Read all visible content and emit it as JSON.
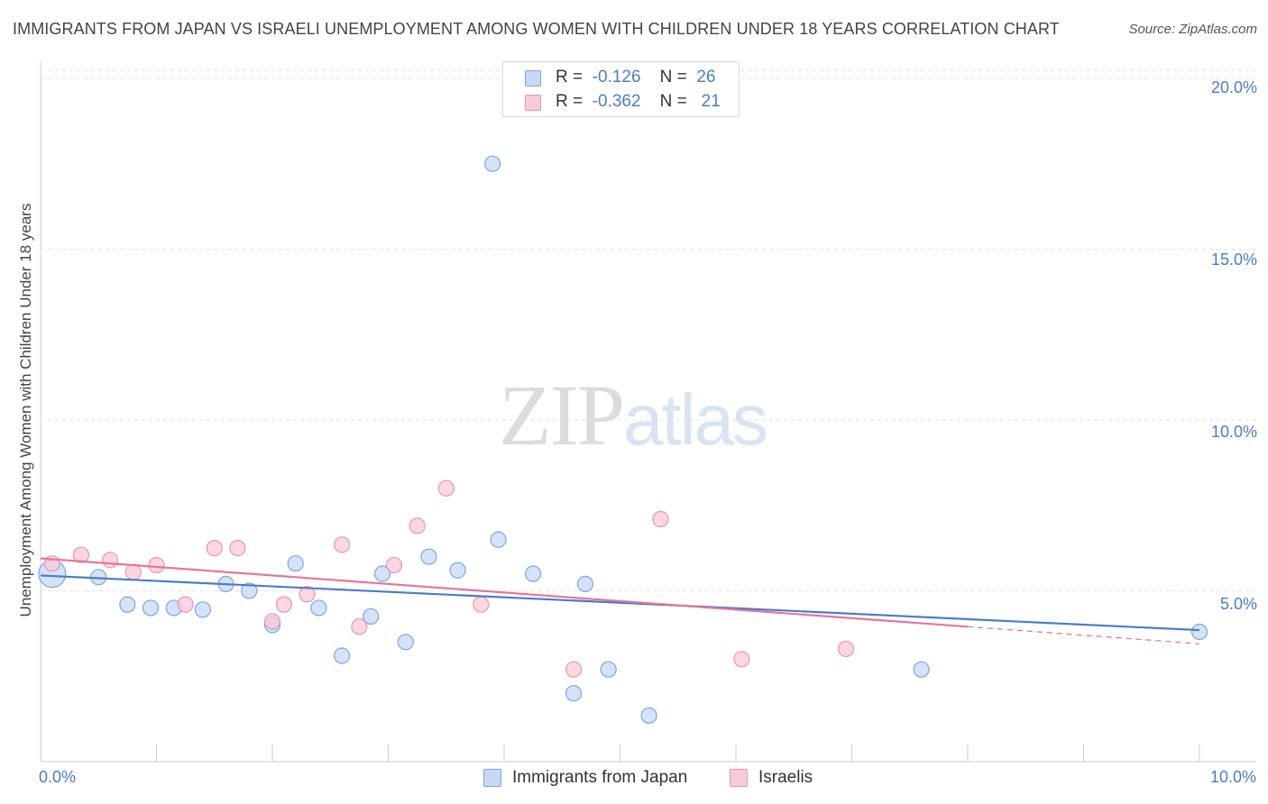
{
  "header": {
    "title": "IMMIGRANTS FROM JAPAN VS ISRAELI UNEMPLOYMENT AMONG WOMEN WITH CHILDREN UNDER 18 YEARS CORRELATION CHART",
    "source": "Source: ZipAtlas.com"
  },
  "watermark": {
    "zip": "ZIP",
    "atlas": "atlas"
  },
  "legend": {
    "rows": [
      {
        "r_label": "R =",
        "r_value": "-0.126",
        "n_label": "N =",
        "n_value": "26",
        "fill": "#c5d9f5",
        "stroke": "#7ea6dc"
      },
      {
        "r_label": "R =",
        "r_value": "-0.362",
        "n_label": "N =",
        "n_value": "21",
        "fill": "#f9cad8",
        "stroke": "#e994b1"
      }
    ]
  },
  "chart_data": {
    "type": "scatter",
    "title": "IMMIGRANTS FROM JAPAN VS ISRAELI UNEMPLOYMENT AMONG WOMEN WITH CHILDREN UNDER 18 YEARS CORRELATION CHART",
    "xlabel": "",
    "ylabel": "Unemployment Among Women with Children Under 18 years",
    "xlim": [
      0,
      10
    ],
    "ylim": [
      0,
      20.5
    ],
    "x_tick_labels": [
      {
        "value": 0,
        "label": "0.0%"
      },
      {
        "value": 10,
        "label": "10.0%"
      }
    ],
    "y_tick_labels": [
      {
        "value": 20,
        "label": "20.0%"
      },
      {
        "value": 15,
        "label": "15.0%"
      },
      {
        "value": 10,
        "label": "10.0%"
      },
      {
        "value": 5,
        "label": "5.0%"
      }
    ],
    "grid": "horizontal dashed",
    "legend_position": "top-center",
    "series": [
      {
        "name": "Immigrants from Japan",
        "color": "#4a7cc9",
        "fill": "#c5d9f5",
        "stroke": "#7ea6dc",
        "points": [
          {
            "x": 0.1,
            "y": 5.5,
            "big": true
          },
          {
            "x": 0.5,
            "y": 5.4
          },
          {
            "x": 0.75,
            "y": 4.6
          },
          {
            "x": 0.95,
            "y": 4.5
          },
          {
            "x": 1.15,
            "y": 4.5
          },
          {
            "x": 1.4,
            "y": 4.45
          },
          {
            "x": 1.6,
            "y": 5.2
          },
          {
            "x": 1.8,
            "y": 5.0
          },
          {
            "x": 2.0,
            "y": 4.0
          },
          {
            "x": 2.2,
            "y": 5.8
          },
          {
            "x": 2.4,
            "y": 4.5
          },
          {
            "x": 2.6,
            "y": 3.1
          },
          {
            "x": 2.85,
            "y": 4.25
          },
          {
            "x": 2.95,
            "y": 5.5
          },
          {
            "x": 3.15,
            "y": 3.5
          },
          {
            "x": 3.35,
            "y": 6.0
          },
          {
            "x": 3.6,
            "y": 5.6
          },
          {
            "x": 3.9,
            "y": 17.5
          },
          {
            "x": 3.95,
            "y": 6.5
          },
          {
            "x": 4.25,
            "y": 5.5
          },
          {
            "x": 4.6,
            "y": 2.0
          },
          {
            "x": 4.7,
            "y": 5.2
          },
          {
            "x": 4.9,
            "y": 2.7
          },
          {
            "x": 5.25,
            "y": 1.35
          },
          {
            "x": 7.6,
            "y": 2.7
          },
          {
            "x": 10.0,
            "y": 3.8
          }
        ],
        "trend": {
          "x0": 0.0,
          "y0": 5.45,
          "x1": 10.0,
          "y1": 3.85
        }
      },
      {
        "name": "Israelis",
        "color": "#e5759c",
        "fill": "#f9cad8",
        "stroke": "#e994b1",
        "points": [
          {
            "x": 0.1,
            "y": 5.8
          },
          {
            "x": 0.35,
            "y": 6.05
          },
          {
            "x": 0.6,
            "y": 5.9
          },
          {
            "x": 0.8,
            "y": 5.55
          },
          {
            "x": 1.0,
            "y": 5.75
          },
          {
            "x": 1.25,
            "y": 4.6
          },
          {
            "x": 1.5,
            "y": 6.25
          },
          {
            "x": 1.7,
            "y": 6.25
          },
          {
            "x": 2.0,
            "y": 4.1
          },
          {
            "x": 2.1,
            "y": 4.6
          },
          {
            "x": 2.3,
            "y": 4.9
          },
          {
            "x": 2.6,
            "y": 6.35
          },
          {
            "x": 2.75,
            "y": 3.95
          },
          {
            "x": 3.05,
            "y": 5.75
          },
          {
            "x": 3.25,
            "y": 6.9
          },
          {
            "x": 3.5,
            "y": 8.0
          },
          {
            "x": 3.8,
            "y": 4.6
          },
          {
            "x": 4.6,
            "y": 2.7
          },
          {
            "x": 5.35,
            "y": 7.1
          },
          {
            "x": 6.05,
            "y": 3.0
          },
          {
            "x": 6.95,
            "y": 3.3
          }
        ],
        "trend": {
          "x0": 0.0,
          "y0": 5.95,
          "x1": 8.0,
          "y1": 3.95,
          "dash_to_x": 10.0,
          "dash_to_y": 3.45
        }
      }
    ]
  }
}
